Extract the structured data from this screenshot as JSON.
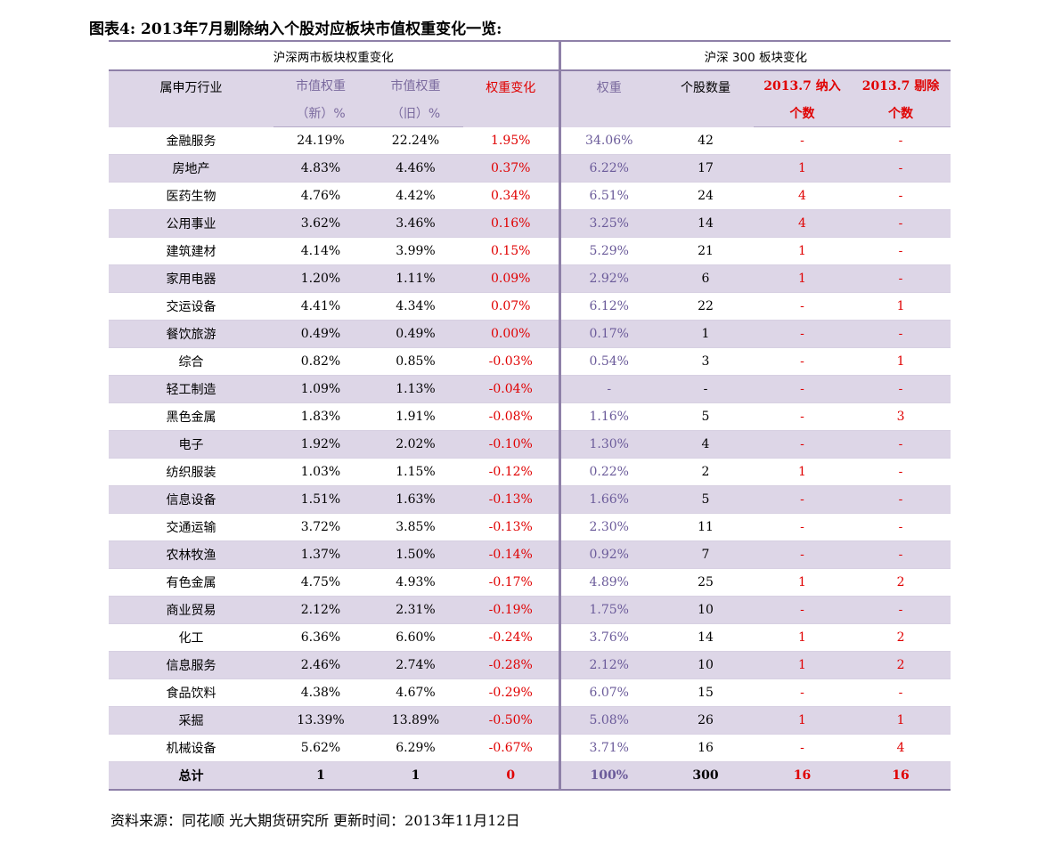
{
  "title": "图表4:  2013年7月剔除纳入个股对应板块市值权重变化一览:",
  "group_headers": {
    "left": "沪深两市板块权重变化",
    "right": "沪深 300 板块变化"
  },
  "headers": {
    "industry": "属申万行业",
    "mv_new_1": "市值权重",
    "mv_new_2": "（新）%",
    "mv_old_1": "市值权重",
    "mv_old_2": "（旧）%",
    "change": "权重变化",
    "weight": "权重",
    "count": "个股数量",
    "incl_1": "2013.7 纳入",
    "incl_2": "个数",
    "excl_1": "2013.7 剔除",
    "excl_2": "个数"
  },
  "rows": [
    [
      "金融服务",
      "24.19%",
      "22.24%",
      "1.95%",
      "34.06%",
      "42",
      "-",
      "-"
    ],
    [
      "房地产",
      "4.83%",
      "4.46%",
      "0.37%",
      "6.22%",
      "17",
      "1",
      "-"
    ],
    [
      "医药生物",
      "4.76%",
      "4.42%",
      "0.34%",
      "6.51%",
      "24",
      "4",
      "-"
    ],
    [
      "公用事业",
      "3.62%",
      "3.46%",
      "0.16%",
      "3.25%",
      "14",
      "4",
      "-"
    ],
    [
      "建筑建材",
      "4.14%",
      "3.99%",
      "0.15%",
      "5.29%",
      "21",
      "1",
      "-"
    ],
    [
      "家用电器",
      "1.20%",
      "1.11%",
      "0.09%",
      "2.92%",
      "6",
      "1",
      "-"
    ],
    [
      "交运设备",
      "4.41%",
      "4.34%",
      "0.07%",
      "6.12%",
      "22",
      "-",
      "1"
    ],
    [
      "餐饮旅游",
      "0.49%",
      "0.49%",
      "0.00%",
      "0.17%",
      "1",
      "-",
      "-"
    ],
    [
      "综合",
      "0.82%",
      "0.85%",
      "-0.03%",
      "0.54%",
      "3",
      "-",
      "1"
    ],
    [
      "轻工制造",
      "1.09%",
      "1.13%",
      "-0.04%",
      "-",
      "-",
      "-",
      "-"
    ],
    [
      "黑色金属",
      "1.83%",
      "1.91%",
      "-0.08%",
      "1.16%",
      "5",
      "-",
      "3"
    ],
    [
      "电子",
      "1.92%",
      "2.02%",
      "-0.10%",
      "1.30%",
      "4",
      "-",
      "-"
    ],
    [
      "纺织服装",
      "1.03%",
      "1.15%",
      "-0.12%",
      "0.22%",
      "2",
      "1",
      "-"
    ],
    [
      "信息设备",
      "1.51%",
      "1.63%",
      "-0.13%",
      "1.66%",
      "5",
      "-",
      "-"
    ],
    [
      "交通运输",
      "3.72%",
      "3.85%",
      "-0.13%",
      "2.30%",
      "11",
      "-",
      "-"
    ],
    [
      "农林牧渔",
      "1.37%",
      "1.50%",
      "-0.14%",
      "0.92%",
      "7",
      "-",
      "-"
    ],
    [
      "有色金属",
      "4.75%",
      "4.93%",
      "-0.17%",
      "4.89%",
      "25",
      "1",
      "2"
    ],
    [
      "商业贸易",
      "2.12%",
      "2.31%",
      "-0.19%",
      "1.75%",
      "10",
      "-",
      "-"
    ],
    [
      "化工",
      "6.36%",
      "6.60%",
      "-0.24%",
      "3.76%",
      "14",
      "1",
      "2"
    ],
    [
      "信息服务",
      "2.46%",
      "2.74%",
      "-0.28%",
      "2.12%",
      "10",
      "1",
      "2"
    ],
    [
      "食品饮料",
      "4.38%",
      "4.67%",
      "-0.29%",
      "6.07%",
      "15",
      "-",
      "-"
    ],
    [
      "采掘",
      "13.39%",
      "13.89%",
      "-0.50%",
      "5.08%",
      "26",
      "1",
      "1"
    ],
    [
      "机械设备",
      "5.62%",
      "6.29%",
      "-0.67%",
      "3.71%",
      "16",
      "-",
      "4"
    ]
  ],
  "total": [
    "总计",
    "1",
    "1",
    "0",
    "100%",
    "300",
    "16",
    "16"
  ],
  "footer": "资料来源：同花顺  光大期货研究所    更新时间：2013年11月12日"
}
